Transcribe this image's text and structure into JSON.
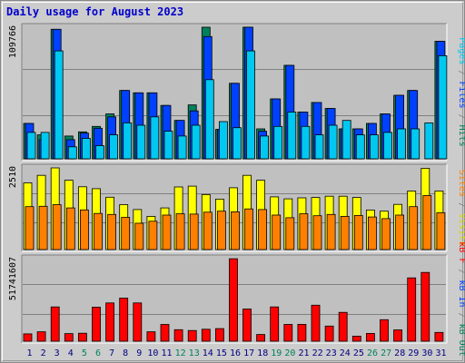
{
  "title": "Daily usage for August 2023",
  "chart_data": {
    "type": "bar",
    "categories": [
      "1",
      "2",
      "3",
      "4",
      "5",
      "6",
      "7",
      "8",
      "9",
      "10",
      "11",
      "12",
      "13",
      "14",
      "15",
      "16",
      "17",
      "18",
      "19",
      "20",
      "21",
      "22",
      "23",
      "24",
      "25",
      "26",
      "27",
      "28",
      "29",
      "30",
      "31"
    ],
    "weekend_days": [
      "5",
      "6",
      "12",
      "13",
      "19",
      "20",
      "26",
      "27"
    ],
    "panels": [
      {
        "id": "top",
        "max_label": "109766",
        "ylim": [
          0,
          109766
        ],
        "series": [
          {
            "name": "Hits",
            "color": "#00805c",
            "values": [
              29500,
              20000,
              108000,
              19000,
              22500,
              27000,
              37500,
              57000,
              55000,
              55000,
              44500,
              32000,
              45000,
              110000,
              24500,
              63000,
              111500,
              25000,
              50000,
              78000,
              39000,
              47000,
              42000,
              25000,
              25000,
              29500,
              37500,
              53000,
              57000,
              0,
              98000
            ]
          },
          {
            "name": "Files",
            "color": "#0040ff",
            "values": [
              29500,
              16000,
              108000,
              16000,
              21500,
              25500,
              35000,
              57000,
              55000,
              55000,
              44500,
              32000,
              40000,
              102000,
              24500,
              63000,
              111500,
              23000,
              50000,
              78000,
              39000,
              47000,
              42000,
              25000,
              25000,
              29500,
              37500,
              53000,
              57000,
              0,
              98000
            ]
          },
          {
            "name": "Pages",
            "color": "#00c8f0",
            "values": [
              22000,
              22000,
              90000,
              10000,
              17000,
              11000,
              20000,
              30000,
              28000,
              35000,
              23000,
              19000,
              28000,
              66000,
              31000,
              26000,
              90000,
              19000,
              27000,
              39000,
              27000,
              20000,
              28000,
              32000,
              20000,
              20000,
              22000,
              25000,
              25000,
              30000,
              86000
            ]
          }
        ]
      },
      {
        "id": "middle",
        "max_label": "2510",
        "ylim": [
          0,
          2510
        ],
        "series": [
          {
            "name": "Visits",
            "color": "#ffff00",
            "values": [
              2050,
              2280,
              2520,
              2130,
              1930,
              1870,
              1610,
              1380,
              1230,
              1020,
              1280,
              1925,
              1950,
              1690,
              1550,
              1900,
              2280,
              2130,
              1620,
              1560,
              1590,
              1600,
              1640,
              1640,
              1600,
              1215,
              1180,
              1390,
              1800,
              2500,
              1800
            ]
          },
          {
            "name": "Sites",
            "color": "#ff8000",
            "values": [
              1320,
              1330,
              1380,
              1280,
              1220,
              1110,
              1080,
              990,
              810,
              870,
              1060,
              1100,
              1090,
              1150,
              1180,
              1160,
              1250,
              1230,
              1060,
              980,
              1100,
              1040,
              1080,
              1020,
              1050,
              1000,
              950,
              1060,
              1320,
              1660,
              1130
            ]
          }
        ]
      },
      {
        "id": "bottom",
        "max_label": "51741607",
        "ylim": [
          0,
          51741607
        ],
        "series": [
          {
            "name": "KB F",
            "color": "#ff0000",
            "values": [
              4600000,
              5900000,
              21500000,
              4800000,
              5000000,
              21300000,
              24000000,
              27000000,
              24000000,
              5900000,
              10500000,
              7200000,
              6700000,
              7500000,
              7900000,
              51700000,
              20200000,
              4200000,
              21500000,
              10500000,
              10600000,
              22600000,
              9500000,
              18100000,
              3200000,
              4900000,
              13500000,
              7100000,
              39700000,
              43100000,
              5500000
            ]
          }
        ]
      }
    ],
    "right_labels": {
      "top": [
        {
          "text": "Pages",
          "color": "#00c8f0"
        },
        {
          "text": " / ",
          "color": "#808080"
        },
        {
          "text": "Files",
          "color": "#0040ff"
        },
        {
          "text": " / ",
          "color": "#808080"
        },
        {
          "text": "Hits",
          "color": "#00805c"
        }
      ],
      "middle": [
        {
          "text": "Sites",
          "color": "#ff8000"
        },
        {
          "text": " / ",
          "color": "#808080"
        },
        {
          "text": "Visits",
          "color": "#d8d800"
        }
      ],
      "bottom": [
        {
          "text": "kB F",
          "color": "#ff0000"
        },
        {
          "text": " / ",
          "color": "#808080"
        },
        {
          "text": "kB In",
          "color": "#0040ff"
        },
        {
          "text": " / ",
          "color": "#808080"
        },
        {
          "text": "kB Out",
          "color": "#00805c"
        }
      ]
    },
    "colors": {
      "weekday_label": "#000080",
      "weekend_label": "#00805c",
      "panel_bg": "#c0c0c0",
      "gridline": "#808080"
    }
  }
}
